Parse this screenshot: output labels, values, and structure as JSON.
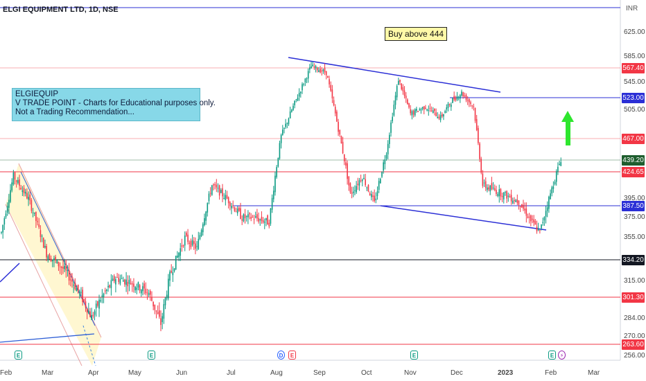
{
  "header": {
    "ticker": "ELGI EQUIPMENT LTD, 1D, NSE",
    "currency": "INR"
  },
  "note": {
    "lines": [
      "ELGIEQUIP",
      "V TRADE POINT - Charts for Educational purposes only.",
      "Not a Trading Recommendation..."
    ]
  },
  "callout": {
    "text": "Buy above 444"
  },
  "colors": {
    "up": "#089981",
    "down": "#f23645",
    "trendline": "#2b2fd6",
    "level_red": "#f23645",
    "level_blue": "#2b2fd6",
    "level_dark": "#131722",
    "channel_fill": "#fff6cc",
    "arrow": "#2ee62e"
  },
  "chart_data": {
    "type": "candlestick",
    "title": "ELGI EQUIPMENT LTD, 1D, NSE",
    "y_axis": {
      "ticks": [
        "625.00",
        "585.00",
        "545.00",
        "505.00",
        "395.00",
        "375.00",
        "355.00",
        "315.00",
        "284.00",
        "270.00",
        "256.00"
      ],
      "unit": "INR"
    },
    "x_axis": {
      "ticks": [
        "Feb",
        "Mar",
        "Apr",
        "May",
        "Jun",
        "Jul",
        "Aug",
        "Sep",
        "Oct",
        "Nov",
        "Dec",
        "2023",
        "Feb",
        "Mar"
      ]
    },
    "price_levels": [
      {
        "label": "567.40",
        "value": 567.4,
        "color": "#f23645"
      },
      {
        "label": "523.00",
        "value": 523.0,
        "color": "#2b2fd6"
      },
      {
        "label": "467.00",
        "value": 467.0,
        "color": "#f23645"
      },
      {
        "label": "439.20",
        "value": 439.2,
        "color": "#1e5d2e"
      },
      {
        "label": "424.65",
        "value": 424.65,
        "color": "#f23645"
      },
      {
        "label": "387.50",
        "value": 387.5,
        "color": "#2b2fd6"
      },
      {
        "label": "334.20",
        "value": 334.2,
        "color": "#131722"
      },
      {
        "label": "301.30",
        "value": 301.3,
        "color": "#f23645"
      },
      {
        "label": "263.60",
        "value": 263.6,
        "color": "#f23645"
      }
    ],
    "event_markers": [
      {
        "label": "E",
        "month": "Feb",
        "kind": "earnings"
      },
      {
        "label": "E",
        "month": "May",
        "kind": "earnings"
      },
      {
        "label": "D",
        "month": "Aug",
        "kind": "dividend"
      },
      {
        "label": "E",
        "month": "Aug",
        "kind": "earnings-red"
      },
      {
        "label": "E",
        "month": "Nov",
        "kind": "earnings"
      },
      {
        "label": "E",
        "month": "Feb",
        "kind": "earnings"
      },
      {
        "label": "⚡",
        "month": "Feb",
        "kind": "split"
      }
    ],
    "ohlc_anchors": [
      [
        0,
        360
      ],
      [
        8,
        420
      ],
      [
        18,
        395
      ],
      [
        30,
        340
      ],
      [
        42,
        325
      ],
      [
        52,
        305
      ],
      [
        60,
        285
      ],
      [
        66,
        300
      ],
      [
        76,
        318
      ],
      [
        88,
        313
      ],
      [
        98,
        305
      ],
      [
        106,
        280
      ],
      [
        112,
        320
      ],
      [
        122,
        355
      ],
      [
        130,
        345
      ],
      [
        140,
        410
      ],
      [
        150,
        395
      ],
      [
        160,
        375
      ],
      [
        168,
        375
      ],
      [
        178,
        370
      ],
      [
        186,
        470
      ],
      [
        196,
        520
      ],
      [
        206,
        570
      ],
      [
        216,
        560
      ],
      [
        224,
        480
      ],
      [
        232,
        400
      ],
      [
        240,
        420
      ],
      [
        248,
        390
      ],
      [
        256,
        450
      ],
      [
        264,
        550
      ],
      [
        272,
        500
      ],
      [
        282,
        510
      ],
      [
        292,
        495
      ],
      [
        300,
        520
      ],
      [
        306,
        530
      ],
      [
        314,
        510
      ],
      [
        320,
        410
      ],
      [
        334,
        400
      ],
      [
        344,
        392
      ],
      [
        352,
        372
      ],
      [
        358,
        360
      ],
      [
        364,
        395
      ],
      [
        372,
        440
      ]
    ]
  }
}
